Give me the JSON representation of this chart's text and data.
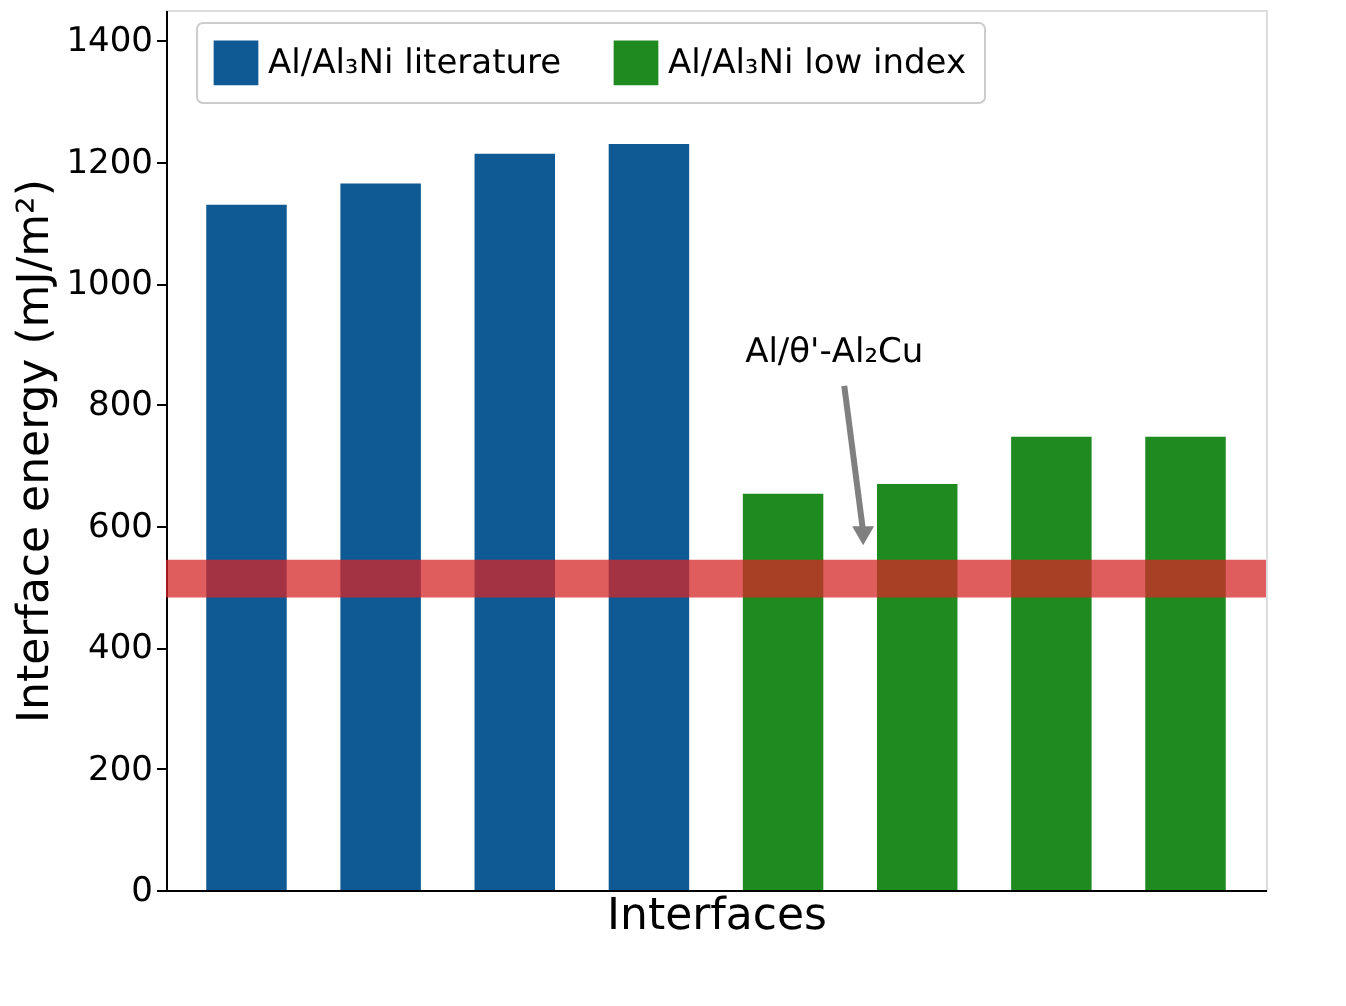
{
  "chart_data": {
    "type": "bar",
    "xlabel": "Interfaces",
    "ylabel": "Interface energy (mJ/m²)",
    "categories": [
      null,
      null,
      null,
      null,
      null,
      null,
      null,
      null
    ],
    "series": [
      {
        "name": "Al/Al₃Ni literature",
        "color": "#0f5a94",
        "values": [
          1129,
          1164,
          1213,
          1229,
          null,
          null,
          null,
          null
        ]
      },
      {
        "name": "Al/Al₃Ni low index",
        "color": "#1f8a1f",
        "values": [
          null,
          null,
          null,
          null,
          653,
          669,
          747,
          747
        ]
      }
    ],
    "ylim": [
      0,
      1450
    ],
    "yticks": [
      0,
      200,
      400,
      600,
      800,
      1000,
      1200,
      1400
    ],
    "bands": [
      {
        "axis": "y",
        "from": 482,
        "to": 544,
        "color": "#d62728"
      }
    ],
    "annotations": [
      "Al/θ'-Al₂Cu"
    ],
    "tick_labels": "y",
    "legend": "top"
  }
}
